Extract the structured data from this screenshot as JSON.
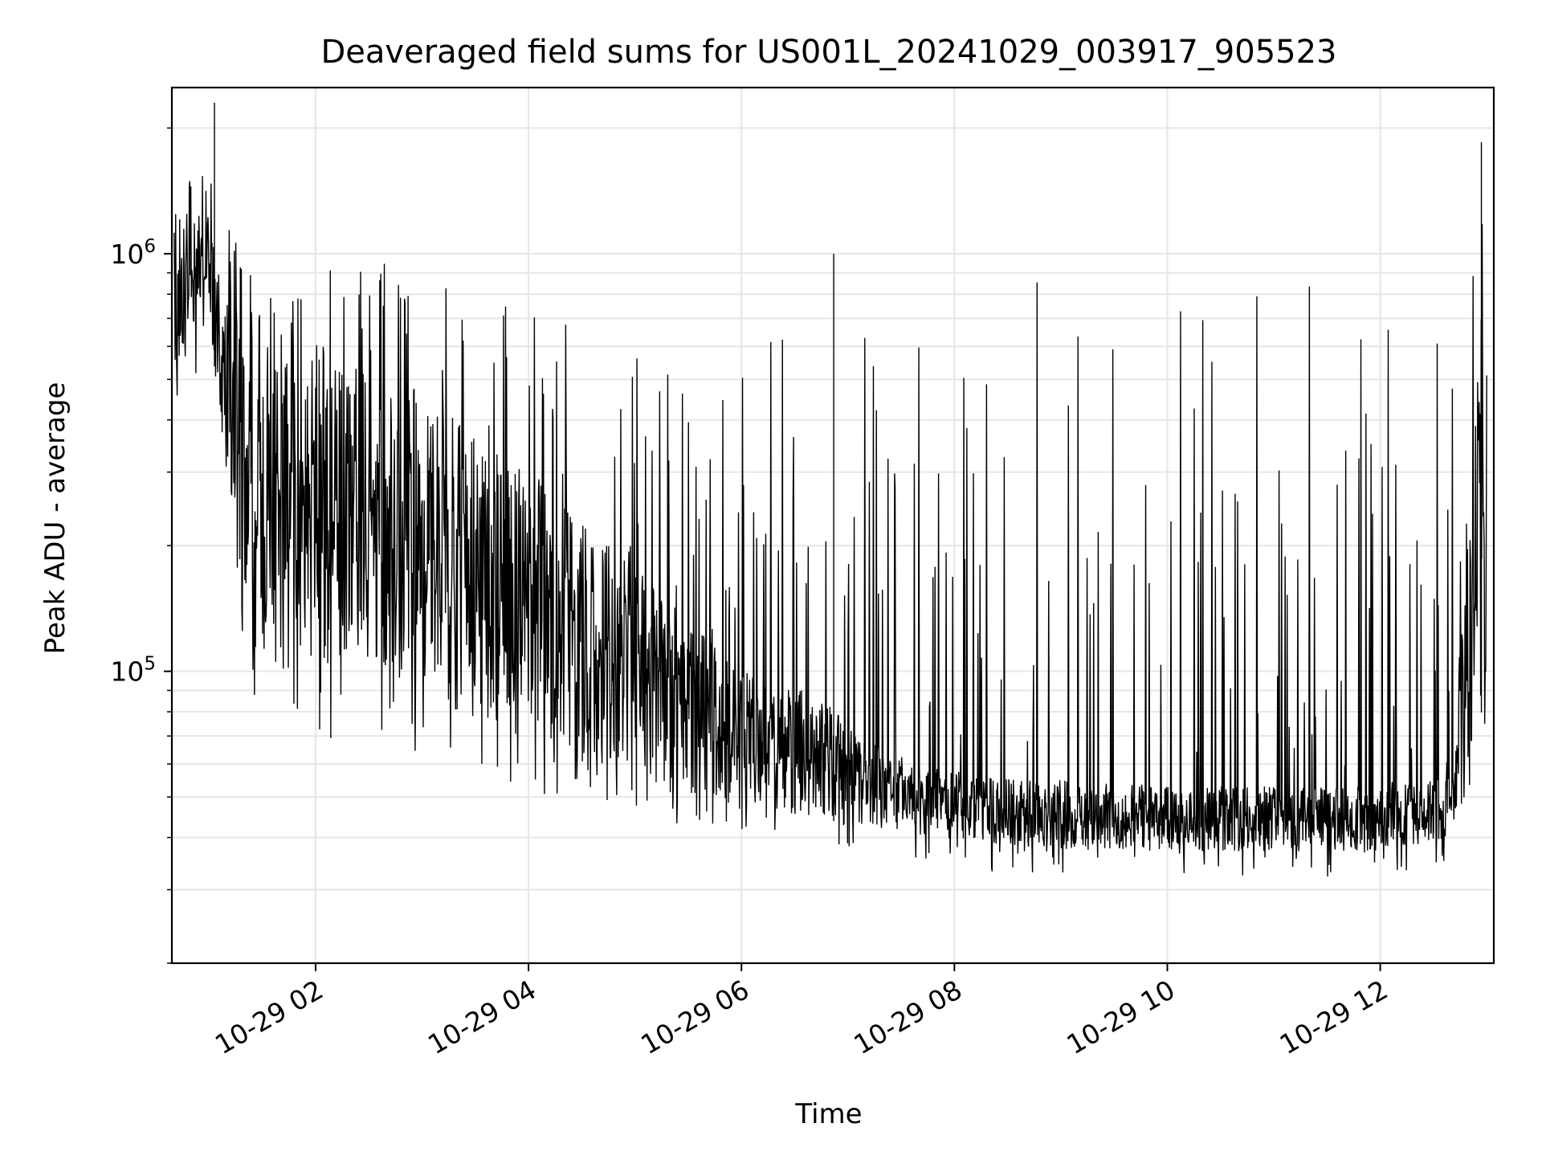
{
  "chart_data": {
    "type": "line",
    "title": "Deaveraged field sums for US001L_20241029_003917_905523",
    "xlabel": "Time",
    "ylabel": "Peak ADU - average",
    "x_scale": "time",
    "y_scale": "log",
    "xlim": [
      "2024-10-29 00:39",
      "2024-10-29 13:04"
    ],
    "ylim": [
      20000,
      2500000
    ],
    "x_ticks": [
      {
        "value": "2024-10-29 02:00",
        "label": "10-29 02"
      },
      {
        "value": "2024-10-29 04:00",
        "label": "10-29 04"
      },
      {
        "value": "2024-10-29 06:00",
        "label": "10-29 06"
      },
      {
        "value": "2024-10-29 08:00",
        "label": "10-29 08"
      },
      {
        "value": "2024-10-29 10:00",
        "label": "10-29 10"
      },
      {
        "value": "2024-10-29 12:00",
        "label": "10-29 12"
      }
    ],
    "y_ticks": [
      {
        "value": 100000,
        "base": "10",
        "exp": "5"
      },
      {
        "value": 1000000,
        "base": "10",
        "exp": "6"
      }
    ],
    "grid": true,
    "line_color": "#000000",
    "grid_color": "#e6e6e6",
    "series": [
      {
        "x": [
          "2024-10-29 00:40",
          "2024-10-29 01:00",
          "2024-10-29 01:20",
          "2024-10-29 01:40",
          "2024-10-29 02:00",
          "2024-10-29 02:20",
          "2024-10-29 02:40",
          "2024-10-29 03:00",
          "2024-10-29 03:20",
          "2024-10-29 03:40",
          "2024-10-29 04:00",
          "2024-10-29 04:20",
          "2024-10-29 04:40",
          "2024-10-29 05:00",
          "2024-10-29 05:20",
          "2024-10-29 05:40",
          "2024-10-29 06:00",
          "2024-10-29 06:20",
          "2024-10-29 06:40",
          "2024-10-29 07:00",
          "2024-10-29 07:20",
          "2024-10-29 07:40",
          "2024-10-29 08:00",
          "2024-10-29 08:20",
          "2024-10-29 08:40",
          "2024-10-29 09:00",
          "2024-10-29 09:20",
          "2024-10-29 09:40",
          "2024-10-29 10:00",
          "2024-10-29 10:20",
          "2024-10-29 10:40",
          "2024-10-29 11:00",
          "2024-10-29 11:20",
          "2024-10-29 11:40",
          "2024-10-29 12:00",
          "2024-10-29 12:20",
          "2024-10-29 12:40",
          "2024-10-29 13:00"
        ],
        "min": [
          400000,
          600000,
          90000,
          70000,
          65000,
          70000,
          70000,
          60000,
          55000,
          50000,
          50000,
          50000,
          48000,
          45000,
          43000,
          42000,
          40000,
          40000,
          40000,
          38000,
          36000,
          35000,
          35000,
          33000,
          32000,
          32000,
          32000,
          32000,
          32000,
          32000,
          32000,
          32000,
          32000,
          32000,
          32000,
          33000,
          35000,
          70000
        ],
        "max": [
          1300000,
          1800000,
          950000,
          950000,
          950000,
          950000,
          950000,
          900000,
          850000,
          800000,
          750000,
          700000,
          700000,
          650000,
          650000,
          650000,
          600000,
          620000,
          900000,
          700000,
          880000,
          880000,
          880000,
          880000,
          880000,
          850000,
          850000,
          850000,
          850000,
          850000,
          850000,
          880000,
          900000,
          900000,
          900000,
          900000,
          950000,
          1800000
        ],
        "typical_low": [
          500000,
          700000,
          120000,
          100000,
          100000,
          110000,
          100000,
          85000,
          80000,
          75000,
          72000,
          65000,
          60000,
          55000,
          52000,
          50000,
          48000,
          46000,
          45000,
          43000,
          42000,
          40000,
          40000,
          38000,
          37000,
          37000,
          37000,
          37000,
          37000,
          37000,
          37000,
          37000,
          37000,
          37000,
          37000,
          38000,
          40000,
          90000
        ],
        "typical_high": [
          1100000,
          1300000,
          600000,
          650000,
          650000,
          650000,
          550000,
          450000,
          400000,
          330000,
          300000,
          250000,
          220000,
          180000,
          150000,
          120000,
          100000,
          95000,
          90000,
          75000,
          65000,
          60000,
          58000,
          56000,
          55000,
          55000,
          54000,
          54000,
          53000,
          53000,
          53000,
          53000,
          53000,
          53000,
          53000,
          54000,
          56000,
          1000000
        ],
        "peaks": [
          {
            "x": "2024-10-29 01:03",
            "y": 2300000
          },
          {
            "x": "2024-10-29 06:52",
            "y": 1000000
          },
          {
            "x": "2024-10-29 12:57",
            "y": 1850000
          }
        ]
      }
    ]
  }
}
